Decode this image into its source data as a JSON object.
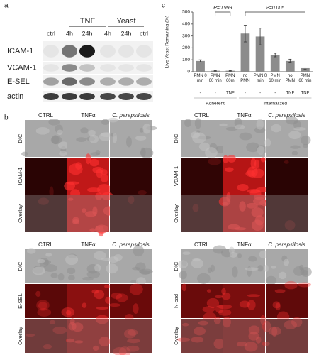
{
  "panel_labels": [
    "a",
    "b",
    "c"
  ],
  "blot": {
    "groups": [
      "TNF",
      "Yeast"
    ],
    "lanes": [
      "ctrl",
      "4h",
      "24h",
      "4h",
      "24h",
      "ctrl"
    ],
    "rows": [
      "ICAM-1",
      "VCAM-1",
      "E-SEL",
      "actin"
    ]
  },
  "chart_data": {
    "type": "bar",
    "ylabel": "Live Yeast Remaining (%)",
    "categories": [
      "PMN 0 min",
      "PMN 60 min",
      "PMN 60m",
      "no PMN",
      "PMN 0 min",
      "PMN 60 min",
      "no PMN",
      "PMN 60 min"
    ],
    "treatment": [
      "-",
      "-",
      "TNF",
      "-",
      "-",
      "-",
      "TNF",
      "TNF"
    ],
    "groups": [
      "Adherent",
      "Internalized"
    ],
    "annotations": [
      "P=0.999",
      "P=0.005"
    ],
    "values": [
      90,
      8,
      8,
      320,
      295,
      140,
      90,
      30
    ],
    "errors": [
      10,
      3,
      3,
      70,
      70,
      15,
      15,
      8
    ],
    "color": "#8c8c8c",
    "ylim": [
      0,
      500
    ],
    "yticks": [
      0,
      100,
      200,
      300,
      400,
      500
    ]
  },
  "microscopy": {
    "columns": [
      "CTRL",
      "TNFα",
      "C. parapsilosis"
    ],
    "rows": [
      "DIC",
      "Overlay"
    ],
    "markers": [
      "ICAM-1",
      "VCAM-1",
      "E-SEL",
      "N-cad"
    ]
  }
}
